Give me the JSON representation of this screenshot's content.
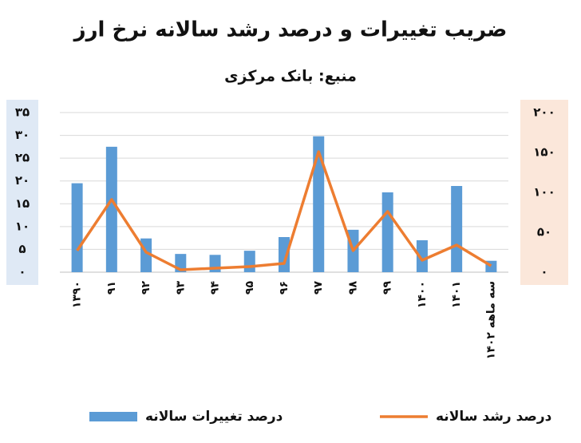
{
  "chart_data": {
    "type": "bar-line",
    "title": "ضریب تغییرات و درصد رشد سالانه نرخ ارز",
    "subtitle": "منبع: بانک مرکزی",
    "categories": [
      "۱۳۹۰",
      "۹۱",
      "۹۲",
      "۹۳",
      "۹۴",
      "۹۵",
      "۹۶",
      "۹۷",
      "۹۸",
      "۹۹",
      "۱۴۰۰",
      "۱۴۰۱",
      "سه ماهه ۱۴۰۲"
    ],
    "series": [
      {
        "name": "درصد تغییرات سالانه",
        "type": "bar",
        "color": "#5b9bd5",
        "values": [
          19.5,
          27.5,
          7.4,
          4,
          3.8,
          4.7,
          7.7,
          29.8,
          9.3,
          17.5,
          7,
          18.9,
          2.5
        ]
      },
      {
        "name": "درصد رشد سالانه",
        "type": "line",
        "color": "#ed7d31",
        "axis": "y2",
        "values": [
          27,
          91,
          25,
          3,
          5,
          7,
          11,
          151,
          27,
          76,
          15,
          34,
          8
        ]
      }
    ],
    "ylim": [
      0,
      35
    ],
    "yticks": [
      {
        "value": 0,
        "label": "۰"
      },
      {
        "value": 5,
        "label": "۵"
      },
      {
        "value": 10,
        "label": "۱۰"
      },
      {
        "value": 15,
        "label": "۱۵"
      },
      {
        "value": 20,
        "label": "۲۰"
      },
      {
        "value": 25,
        "label": "۲۵"
      },
      {
        "value": 30,
        "label": "۳۰"
      },
      {
        "value": 35,
        "label": "۳۵"
      }
    ],
    "y2lim": [
      0,
      200
    ],
    "y2ticks": [
      {
        "value": 0,
        "label": "۰"
      },
      {
        "value": 50,
        "label": "۵۰"
      },
      {
        "value": 100,
        "label": "۱۰۰"
      },
      {
        "value": 150,
        "label": "۱۵۰"
      },
      {
        "value": 200,
        "label": "۲۰۰"
      }
    ],
    "grid": true,
    "legend": "bottom"
  }
}
